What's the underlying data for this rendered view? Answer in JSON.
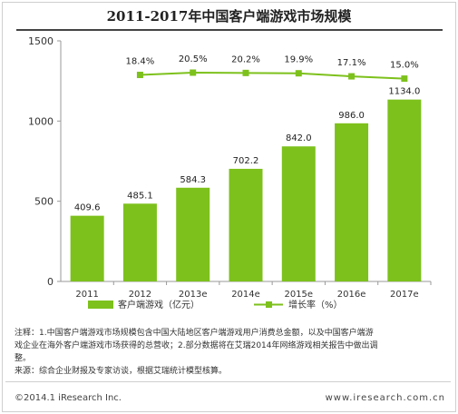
{
  "chart_data": {
    "type": "bar",
    "title": "2011-2017年中国客户端游戏市场规模",
    "categories": [
      "2011",
      "2012",
      "2013e",
      "2014e",
      "2015e",
      "2016e",
      "2017e"
    ],
    "series": [
      {
        "name": "客户端游戏（亿元）",
        "type": "bar",
        "values": [
          409.6,
          485.1,
          584.3,
          702.2,
          842.0,
          986.0,
          1134.0
        ],
        "labels": [
          "409.6",
          "485.1",
          "584.3",
          "702.2",
          "842.0",
          "986.0",
          "1134.0"
        ],
        "color": "#7dc11c"
      },
      {
        "name": "增长率（%）",
        "type": "line",
        "values": [
          null,
          18.4,
          20.5,
          20.2,
          19.9,
          17.1,
          15.0
        ],
        "labels": [
          "",
          "18.4%",
          "20.5%",
          "20.2%",
          "19.9%",
          "17.1%",
          "15.0%"
        ],
        "color": "#7dc11c"
      }
    ],
    "y_ticks": [
      0,
      500,
      1000,
      1500
    ],
    "ylim": [
      0,
      1500
    ],
    "legend_position": "bottom",
    "grid": false
  },
  "notes": {
    "line1": "注释：1.中国客户端游戏市场规模包含中国大陆地区客户端游戏用户消费总金额，以及中国客户端游",
    "line2": "戏企业在海外客户端游戏市场获得的总营收；2.部分数据将在艾瑞2014年网络游戏相关报告中做出调",
    "line3": "整。",
    "line4": "来源：综合企业财报及专家访谈，根据艾瑞统计模型核算。"
  },
  "footer": {
    "copyright": "©2014.1 iResearch Inc.",
    "site": "www.iresearch.com.cn"
  }
}
